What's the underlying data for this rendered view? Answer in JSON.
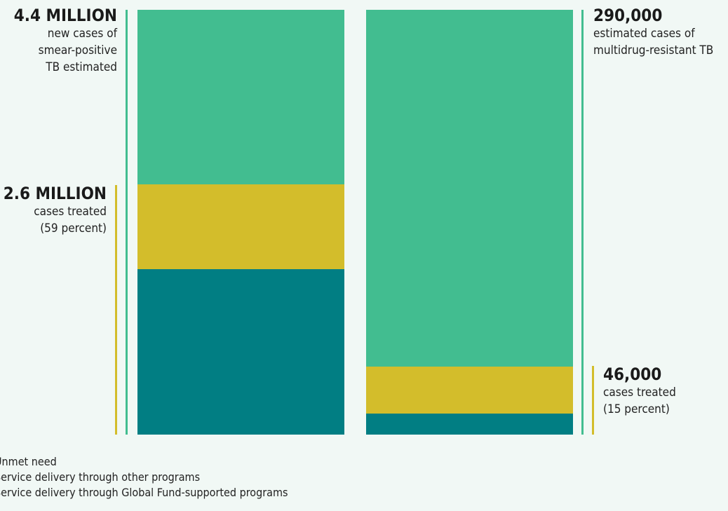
{
  "colors": {
    "unmet": "#42bd90",
    "other": "#d3bd2b",
    "global_fund": "#017e83",
    "background": "#f1f8f5"
  },
  "annotations": {
    "left_total": {
      "big": "4.4 MILLION",
      "lines": [
        "new cases of",
        "smear-positive",
        "TB estimated"
      ]
    },
    "left_treated": {
      "big": "2.6 MILLION",
      "lines": [
        "cases treated",
        "(59 percent)"
      ]
    },
    "right_total": {
      "big": "290,000",
      "lines": [
        "estimated cases of",
        "multidrug-resistant TB"
      ]
    },
    "right_treated": {
      "big": "46,000",
      "lines": [
        "cases treated",
        "(15 percent)"
      ]
    }
  },
  "legend": [
    {
      "label": "Unmet need",
      "color_key": "unmet"
    },
    {
      "label": "Service delivery through other programs",
      "color_key": "other"
    },
    {
      "label": "Service delivery through Global Fund-supported programs",
      "color_key": "global_fund"
    }
  ],
  "chart_data": {
    "type": "bar",
    "stacked": true,
    "normalized": true,
    "categories": [
      "Smear-positive TB",
      "Multidrug-resistant TB"
    ],
    "series": [
      {
        "name": "Service delivery through Global Fund-supported programs",
        "values": [
          0.39,
          0.05
        ]
      },
      {
        "name": "Service delivery through other programs",
        "values": [
          0.2,
          0.11
        ]
      },
      {
        "name": "Unmet need",
        "values": [
          0.41,
          0.84
        ]
      }
    ],
    "totals": [
      "4.4 MILLION",
      "290,000"
    ],
    "treated": [
      "2.6 MILLION",
      "46,000"
    ],
    "treated_percent": [
      59,
      15
    ]
  }
}
